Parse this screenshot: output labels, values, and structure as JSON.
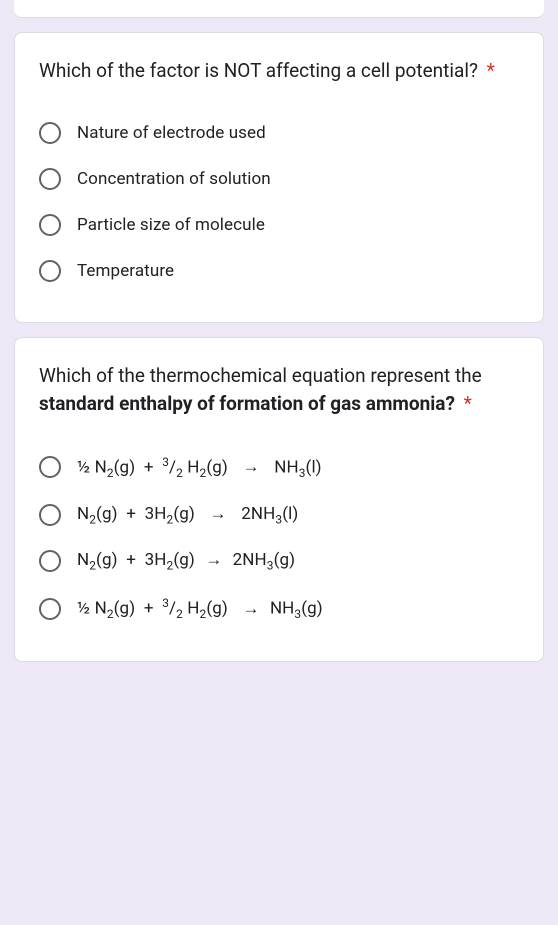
{
  "questions": [
    {
      "prompt_html": "Which of the factor is NOT affecting a cell potential?",
      "required": "*",
      "options": [
        "Nature of electrode used",
        "Concentration of solution",
        "Particle size of molecule",
        "Temperature"
      ]
    },
    {
      "prompt_html": "Which of the thermochemical equation represent the <b>standard enthalpy of formation of gas ammonia?</b>",
      "required": "*",
      "options": [
        "½ N<sub>2</sub>(g) &nbsp;+ &nbsp;<sup>3</sup>/<sub>2</sub> H<sub>2</sub>(g)&nbsp;&nbsp;<span class='arrow'>→</span>&nbsp;&nbsp;NH<sub>3</sub>(l)",
        "N<sub>2</sub>(g) &nbsp;+ &nbsp;3H<sub>2</sub>(g)&nbsp;&nbsp;<span class='arrow'>→</span>&nbsp;&nbsp;2NH<sub>3</sub>(l)",
        "N<sub>2</sub>(g) &nbsp;+ &nbsp;3H<sub>2</sub>(g)&nbsp;<span class='arrow'>→</span>&nbsp;2NH<sub>3</sub>(g)",
        "½ N<sub>2</sub>(g) &nbsp;+ &nbsp;<sup>3</sup>/<sub>2</sub> H<sub>2</sub>(g)&nbsp;&nbsp;<span class='arrow'>→</span>&nbsp;NH<sub>3</sub>(g)"
      ]
    }
  ],
  "colors": {
    "page_bg": "#ede7f6",
    "card_bg": "#ffffff",
    "card_border": "#dadce0",
    "text": "#202124",
    "radio_border": "#5f6368",
    "required": "#d93025"
  }
}
